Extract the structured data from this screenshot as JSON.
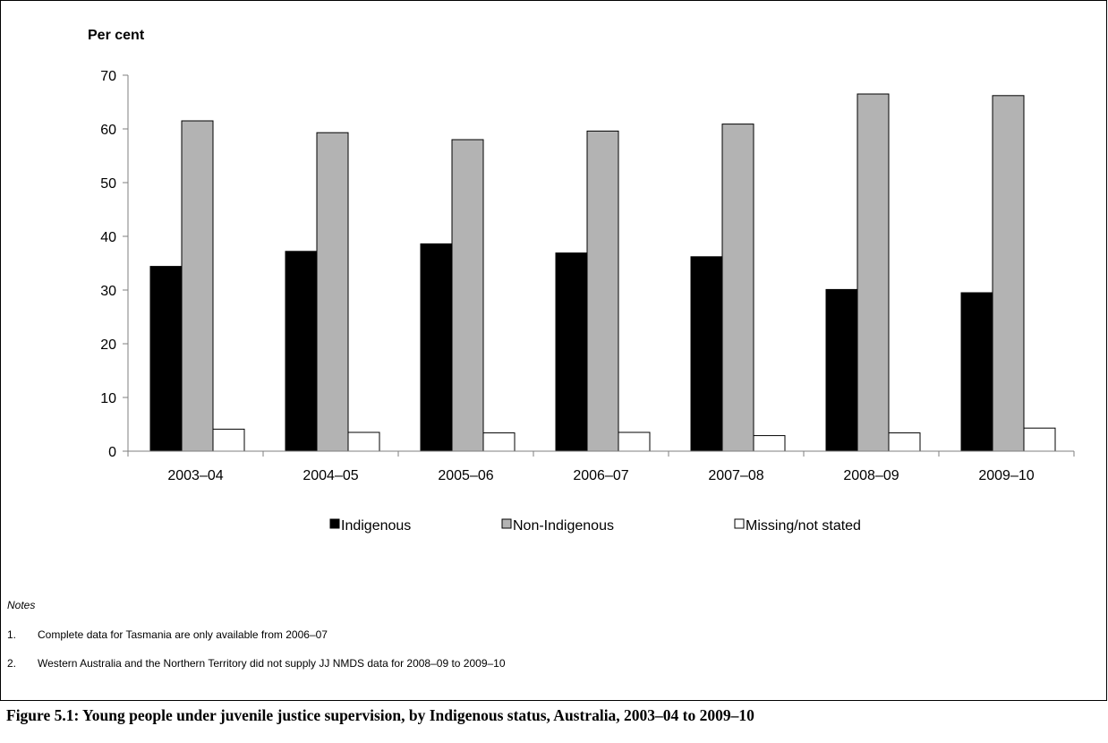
{
  "chart_data": {
    "type": "bar",
    "ylabel": "Per cent",
    "ylim": [
      0,
      70
    ],
    "yticks": [
      0,
      10,
      20,
      30,
      40,
      50,
      60,
      70
    ],
    "categories": [
      "2003–04",
      "2004–05",
      "2005–06",
      "2006–07",
      "2007–08",
      "2008–09",
      "2009–10"
    ],
    "series": [
      {
        "name": "Indigenous",
        "color": "#000000",
        "values": [
          34.4,
          37.2,
          38.6,
          36.9,
          36.2,
          30.1,
          29.5
        ]
      },
      {
        "name": "Non-Indigenous",
        "color": "#b3b3b3",
        "values": [
          61.5,
          59.3,
          58.0,
          59.6,
          60.9,
          66.5,
          66.2
        ]
      },
      {
        "name": "Missing/not stated",
        "color": "#ffffff",
        "values": [
          4.1,
          3.5,
          3.4,
          3.5,
          2.9,
          3.4,
          4.3
        ]
      }
    ],
    "legend_position": "bottom",
    "grid": false
  },
  "notes": {
    "title": "Notes",
    "items": [
      {
        "num": "1.",
        "text": "Complete data for Tasmania are only available from 2006–07"
      },
      {
        "num": "2.",
        "text": "Western Australia and the Northern Territory did not supply JJ NMDS data for 2008–09 to 2009–10"
      }
    ]
  },
  "caption": "Figure 5.1: Young people under juvenile justice supervision, by Indigenous status, Australia, 2003–04 to 2009–10"
}
